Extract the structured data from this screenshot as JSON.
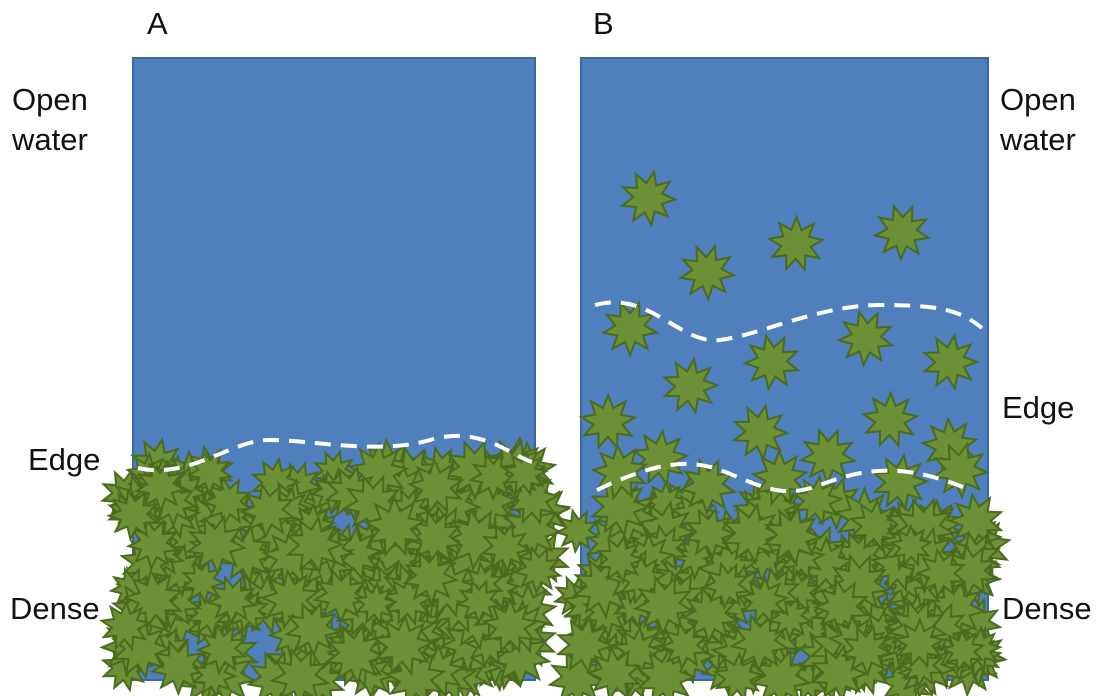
{
  "panels": [
    {
      "label": "A",
      "open_water": "Open water",
      "edge": "Edge",
      "dense": "Dense"
    },
    {
      "label": "B",
      "open_water": "Open water",
      "edge": "Edge",
      "dense": "Dense"
    }
  ]
}
